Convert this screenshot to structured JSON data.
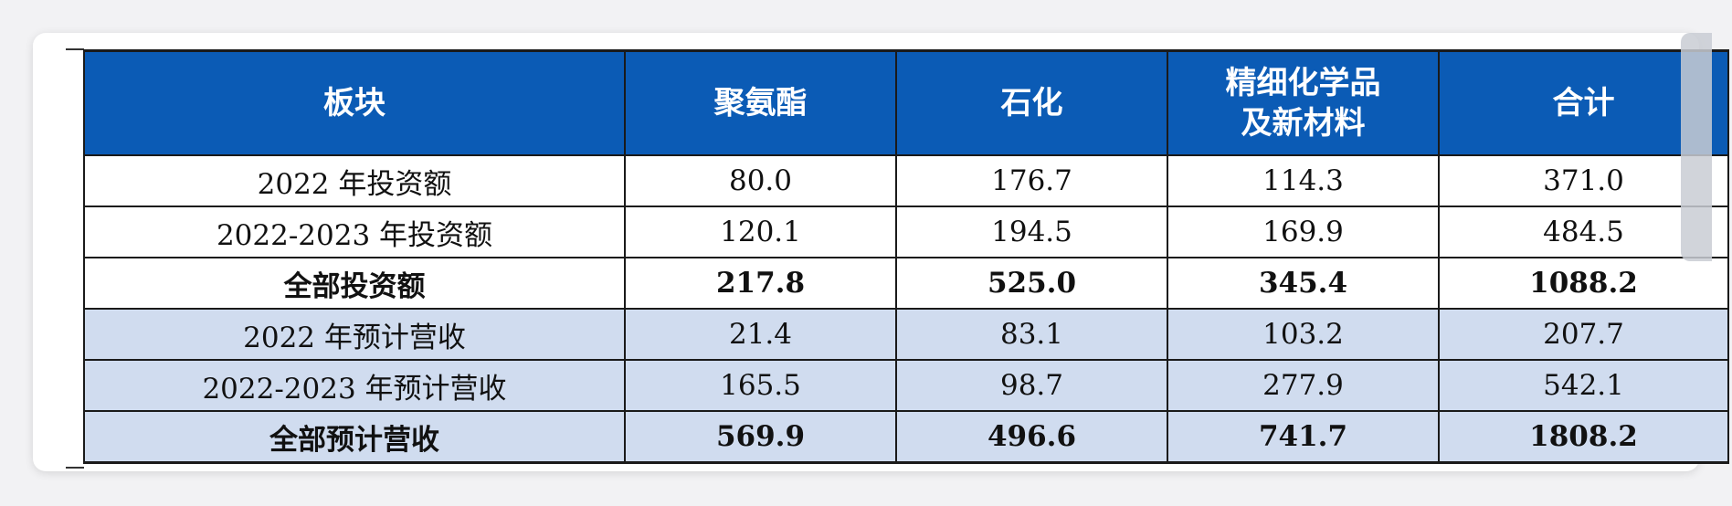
{
  "table": {
    "headers": [
      "板块",
      "聚氨酯",
      "石化",
      "精细化学品\n及新材料",
      "合计"
    ],
    "rows": [
      [
        "2022 年投资额",
        "80.0",
        "176.7",
        "114.3",
        "371.0"
      ],
      [
        "2022-2023 年投资额",
        "120.1",
        "194.5",
        "169.9",
        "484.5"
      ],
      [
        "全部投资额",
        "217.8",
        "525.0",
        "345.4",
        "1088.2"
      ],
      [
        "2022 年预计营收",
        "21.4",
        "83.1",
        "103.2",
        "207.7"
      ],
      [
        "2022-2023 年预计营收",
        "165.5",
        "98.7",
        "277.9",
        "542.1"
      ],
      [
        "全部预计营收",
        "569.9",
        "496.6",
        "741.7",
        "1808.2"
      ]
    ]
  },
  "colors": {
    "header_bg": "#0b5bb5",
    "revenue_rows_bg": "#d0dcef",
    "investment_rows_bg": "#ffffff"
  }
}
